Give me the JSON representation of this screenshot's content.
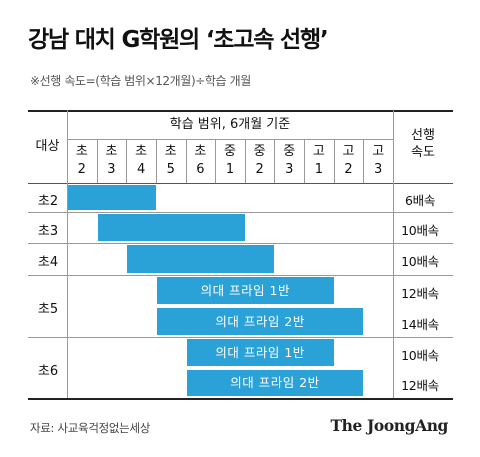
{
  "title": "강남 대치 G학원의 ‘초고속 선행’",
  "subtitle": "※선행 속도=(학습 범위×12개월)÷학습 개월",
  "table": {
    "corner_header": "대상",
    "range_header": "학습 범위, 6개월 기준",
    "speed_header_line1": "선행",
    "speed_header_line2": "속도",
    "grades": [
      {
        "top": "초",
        "bottom": "2"
      },
      {
        "top": "초",
        "bottom": "3"
      },
      {
        "top": "초",
        "bottom": "4"
      },
      {
        "top": "초",
        "bottom": "5"
      },
      {
        "top": "초",
        "bottom": "6"
      },
      {
        "top": "중",
        "bottom": "1"
      },
      {
        "top": "중",
        "bottom": "2"
      },
      {
        "top": "중",
        "bottom": "3"
      },
      {
        "top": "고",
        "bottom": "1"
      },
      {
        "top": "고",
        "bottom": "2"
      },
      {
        "top": "고",
        "bottom": "3"
      }
    ],
    "groups": [
      "초2",
      "초3",
      "초4",
      "초5",
      "초6"
    ],
    "rows": [
      {
        "group": "초2",
        "label": "",
        "start": 0,
        "end": 3,
        "speed": "6배속"
      },
      {
        "group": "초3",
        "label": "",
        "start": 1,
        "end": 6,
        "speed": "10배속"
      },
      {
        "group": "초4",
        "label": "",
        "start": 2,
        "end": 7,
        "speed": "10배속"
      },
      {
        "group": "초5",
        "label": "의대 프라임 1반",
        "start": 3,
        "end": 9,
        "speed": "12배속"
      },
      {
        "group": "초5",
        "label": "의대 프라임 2반",
        "start": 3,
        "end": 10,
        "speed": "14배속"
      },
      {
        "group": "초6",
        "label": "의대 프라임 1반",
        "start": 4,
        "end": 9,
        "speed": "10배속"
      },
      {
        "group": "초6",
        "label": "의대 프라임 2반",
        "start": 4,
        "end": 10,
        "speed": "12배속"
      }
    ]
  },
  "bar_color": "#2aa2d8",
  "source": "자료: 사교육걱정없는세상",
  "logo": "The JoongAng"
}
